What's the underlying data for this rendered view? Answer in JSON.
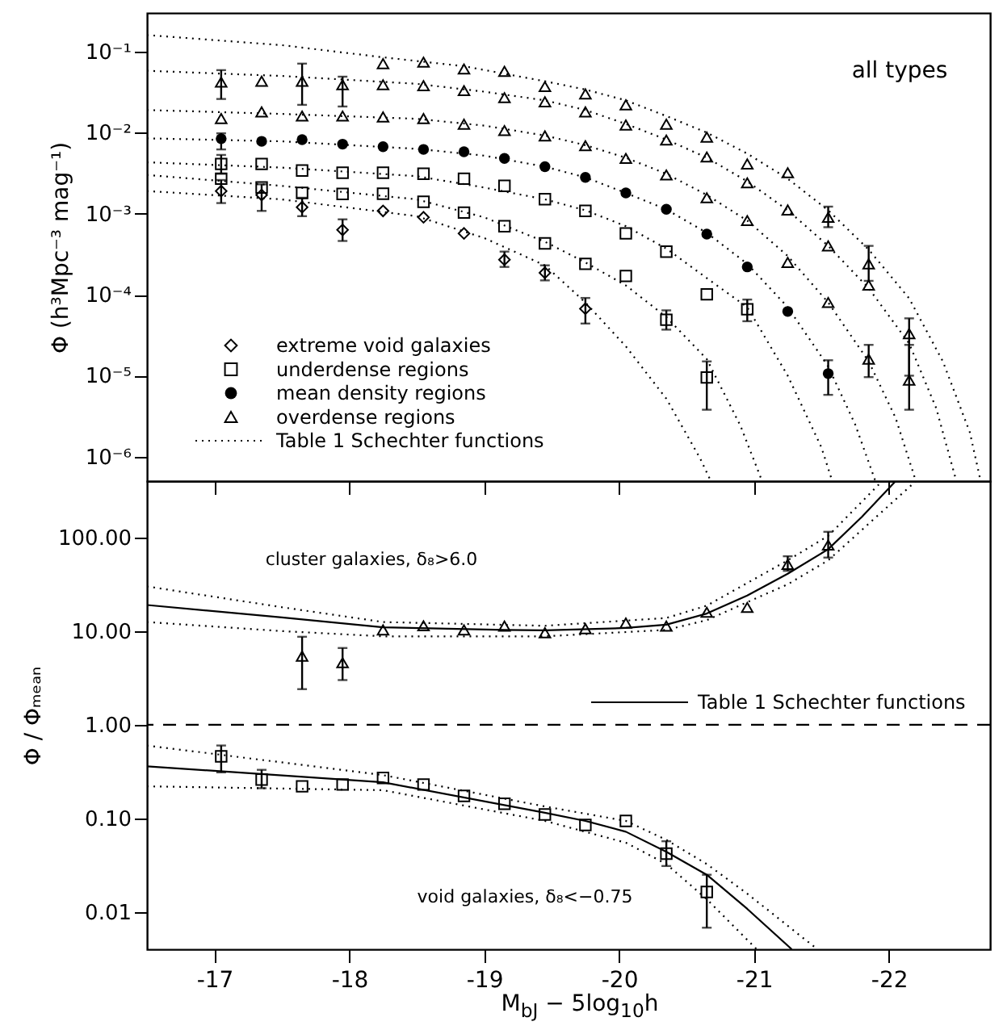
{
  "chart_data": [
    {
      "type": "scatter",
      "ylabel": "Φ (h³Mpc⁻³ mag⁻¹)",
      "xlim": [
        -16.5,
        -22.75
      ],
      "xticks": [
        -17,
        -18,
        -19,
        -20,
        -21,
        -22
      ],
      "ylim": [
        5e-07,
        0.3
      ],
      "log": "y",
      "tick_labels": "y",
      "legend": "bottom left",
      "annotations": [
        "all types"
      ],
      "yticks": [
        {
          "value": 1e-06,
          "label": "10⁻⁶"
        },
        {
          "value": 1e-05,
          "label": "10⁻⁵"
        },
        {
          "value": 0.0001,
          "label": "10⁻⁴"
        },
        {
          "value": 0.001,
          "label": "10⁻³"
        },
        {
          "value": 0.01,
          "label": "10⁻²"
        },
        {
          "value": 0.1,
          "label": "10⁻¹"
        }
      ],
      "series": [
        {
          "name": "extreme void galaxies",
          "marker": "diamond",
          "color": "#000000",
          "x": [
            -17.05,
            -17.35,
            -17.65,
            -17.95,
            -18.25,
            -18.55,
            -18.85,
            -19.15,
            -19.45,
            -19.75
          ],
          "values": [
            0.0019,
            0.0017,
            0.0012,
            0.00063,
            0.00108,
            0.0009,
            0.00057,
            0.00027,
            0.000186,
            6.7e-05
          ],
          "errors": [
            [
              0.00135,
              0.0026
            ],
            [
              0.00108,
              0.0023
            ],
            [
              0.00093,
              0.00157
            ],
            [
              0.00046,
              0.00085
            ],
            null,
            null,
            null,
            [
              0.00022,
              0.00034
            ],
            [
              0.00015,
              0.00023
            ],
            [
              4.4e-05,
              9.1e-05
            ]
          ]
        },
        {
          "name": "underdense regions",
          "marker": "square",
          "color": "#000000",
          "x": [
            -17.05,
            -17.35,
            -17.65,
            -17.95,
            -18.25,
            -18.55,
            -18.85,
            -19.15,
            -19.45,
            -19.75,
            -20.05,
            -20.35,
            -20.65,
            -20.95
          ],
          "values": [
            0.0041,
            0.0041,
            0.0034,
            0.0032,
            0.0032,
            0.0031,
            0.0027,
            0.0022,
            0.00151,
            0.00108,
            0.00057,
            0.00034,
            0.000101,
            6.6e-05
          ],
          "errors": [
            [
              0.0031,
              0.0053
            ],
            null,
            null,
            null,
            null,
            null,
            null,
            null,
            null,
            null,
            null,
            null,
            null,
            [
              4.7e-05,
              8.7e-05
            ]
          ]
        },
        {
          "marker": "square",
          "color": "#000000",
          "x": [
            -17.05,
            -17.35,
            -17.65,
            -17.95,
            -18.25,
            -18.55,
            -18.85,
            -19.15,
            -19.45,
            -19.75,
            -20.05,
            -20.35,
            -20.65
          ],
          "values": [
            0.0027,
            0.0021,
            0.0018,
            0.00175,
            0.00176,
            0.0014,
            0.00103,
            0.0007,
            0.00043,
            0.00024,
            0.00017,
            4.9e-05,
            9.5e-06
          ],
          "errors": [
            null,
            null,
            null,
            null,
            null,
            null,
            null,
            null,
            null,
            null,
            null,
            [
              3.7e-05,
              6.4e-05
            ],
            [
              3.8e-06,
              1.5e-05
            ]
          ]
        },
        {
          "name": "mean density regions",
          "marker": "circle",
          "color": "#000000",
          "x": [
            -17.05,
            -17.35,
            -17.65,
            -17.95,
            -18.25,
            -18.55,
            -18.85,
            -19.15,
            -19.45,
            -19.75,
            -20.05,
            -20.35,
            -20.65,
            -20.95,
            -21.25,
            -21.55
          ],
          "values": [
            0.0084,
            0.0078,
            0.0082,
            0.0072,
            0.0067,
            0.0062,
            0.0058,
            0.0048,
            0.0038,
            0.0028,
            0.0018,
            0.00113,
            0.00056,
            0.00022,
            6.2e-05,
            1.06e-05
          ],
          "errors": [
            [
              0.0062,
              0.0098
            ],
            null,
            null,
            null,
            null,
            null,
            null,
            null,
            null,
            null,
            null,
            null,
            null,
            null,
            null,
            [
              5.8e-06,
              1.55e-05
            ]
          ]
        },
        {
          "name": "overdense regions",
          "marker": "triangle",
          "color": "#000000",
          "x": [
            -18.25,
            -18.55,
            -18.85,
            -19.15,
            -19.45,
            -19.75,
            -20.05,
            -20.35,
            -20.65,
            -20.95,
            -21.25,
            -21.55,
            -21.85,
            -22.15
          ],
          "values": [
            0.071,
            0.074,
            0.061,
            0.057,
            0.037,
            0.03,
            0.022,
            0.0127,
            0.0088,
            0.0041,
            0.0032,
            0.0009,
            0.00024,
            3.3e-05
          ],
          "errors": [
            null,
            null,
            null,
            null,
            null,
            null,
            null,
            null,
            null,
            null,
            null,
            [
              0.00068,
              0.00122
            ],
            [
              0.000148,
              0.0004
            ],
            [
              1e-05,
              5.1e-05
            ]
          ]
        },
        {
          "marker": "triangle",
          "color": "#000000",
          "x": [
            -17.05,
            -17.35,
            -17.65,
            -17.95,
            -18.25,
            -18.55,
            -18.85,
            -19.15,
            -19.45,
            -19.75,
            -20.05,
            -20.35,
            -20.65,
            -20.95,
            -21.25,
            -21.55,
            -21.85,
            -22.15
          ],
          "values": [
            0.042,
            0.043,
            0.043,
            0.039,
            0.039,
            0.038,
            0.033,
            0.027,
            0.024,
            0.018,
            0.0124,
            0.0081,
            0.005,
            0.0024,
            0.00111,
            0.0004,
            0.000131,
            8.8e-06
          ],
          "errors": [
            [
              0.026,
              0.059
            ],
            null,
            [
              0.022,
              0.071
            ],
            [
              0.021,
              0.049
            ],
            null,
            null,
            null,
            null,
            null,
            null,
            null,
            null,
            null,
            null,
            null,
            null,
            null,
            [
              3.8e-06,
              2.4e-05
            ]
          ]
        },
        {
          "marker": "triangle",
          "color": "#000000",
          "x": [
            -17.05,
            -17.35,
            -17.65,
            -17.95,
            -18.25,
            -18.55,
            -18.85,
            -19.15,
            -19.45,
            -19.75,
            -20.05,
            -20.35,
            -20.65,
            -20.95,
            -21.25,
            -21.55,
            -21.85
          ],
          "values": [
            0.0149,
            0.018,
            0.016,
            0.016,
            0.0156,
            0.0149,
            0.0127,
            0.0106,
            0.0091,
            0.0069,
            0.0048,
            0.003,
            0.00157,
            0.00082,
            0.00025,
            8e-05,
            1.6e-05
          ],
          "errors": [
            null,
            null,
            null,
            null,
            null,
            null,
            null,
            null,
            null,
            null,
            null,
            null,
            null,
            null,
            null,
            null,
            [
              9.6e-06,
              2.4e-05
            ]
          ]
        },
        {
          "type": "line",
          "name": "Table 1 Schechter functions",
          "line_style": "dotted",
          "color": "#000000",
          "x": [
            -16.5,
            -17.5,
            -18.25,
            -18.85,
            -19.45,
            -19.75,
            -20.05,
            -20.35,
            -20.65,
            -20.95,
            -21.25,
            -21.55,
            -21.85,
            -22.15,
            -22.4,
            -22.6,
            -22.68
          ],
          "values": [
            0.16,
            0.12,
            0.085,
            0.066,
            0.043,
            0.034,
            0.025,
            0.016,
            0.01,
            0.0055,
            0.0027,
            0.0011,
            0.00036,
            9e-05,
            1.5e-05,
            2e-06,
            5e-07
          ]
        },
        {
          "type": "line",
          "line_style": "dotted",
          "color": "#000000",
          "x": [
            -16.5,
            -17.5,
            -18.5,
            -19,
            -19.45,
            -19.75,
            -20.05,
            -20.35,
            -20.65,
            -20.95,
            -21.25,
            -21.55,
            -21.85,
            -22.15,
            -22.35,
            -22.5
          ],
          "values": [
            0.058,
            0.05,
            0.04,
            0.032,
            0.025,
            0.019,
            0.0128,
            0.0082,
            0.0049,
            0.0025,
            0.0011,
            0.0004,
            0.00012,
            2.5e-05,
            4e-06,
            5e-07
          ]
        },
        {
          "type": "line",
          "line_style": "dotted",
          "color": "#000000",
          "x": [
            -16.5,
            -17.5,
            -18.5,
            -19,
            -19.45,
            -19.75,
            -20.05,
            -20.35,
            -20.65,
            -20.95,
            -21.25,
            -21.55,
            -21.85,
            -22.05,
            -22.2
          ],
          "values": [
            0.019,
            0.017,
            0.0148,
            0.0122,
            0.0092,
            0.007,
            0.0049,
            0.0031,
            0.0017,
            0.00082,
            0.0003,
            8e-05,
            1.5e-05,
            3e-06,
            5e-07
          ]
        },
        {
          "type": "line",
          "line_style": "dotted",
          "color": "#000000",
          "x": [
            -16.5,
            -17.5,
            -18.5,
            -19,
            -19.45,
            -19.75,
            -20.05,
            -20.35,
            -20.65,
            -20.95,
            -21.25,
            -21.55,
            -21.75,
            -21.9
          ],
          "values": [
            0.0085,
            0.0078,
            0.0063,
            0.0052,
            0.0038,
            0.0028,
            0.0018,
            0.00113,
            0.00058,
            0.00024,
            7e-05,
            1.3e-05,
            2.5e-06,
            5e-07
          ]
        },
        {
          "type": "line",
          "line_style": "dotted",
          "color": "#000000",
          "x": [
            -16.5,
            -17.5,
            -18.5,
            -19,
            -19.45,
            -19.75,
            -20.05,
            -20.35,
            -20.65,
            -20.95,
            -21.25,
            -21.5,
            -21.58
          ],
          "values": [
            0.0043,
            0.0037,
            0.0029,
            0.0021,
            0.0015,
            0.0011,
            0.0007,
            0.00037,
            0.00016,
            7e-05,
            1e-05,
            1.3e-06,
            5e-07
          ]
        },
        {
          "type": "line",
          "line_style": "dotted",
          "color": "#000000",
          "x": [
            -16.5,
            -17.5,
            -18.5,
            -19,
            -19.45,
            -19.75,
            -20.05,
            -20.35,
            -20.65,
            -20.9,
            -21.06
          ],
          "values": [
            0.003,
            0.0022,
            0.0015,
            0.0009,
            0.00045,
            0.00025,
            0.00013,
            5.3e-05,
            1.6e-05,
            2.4e-06,
            5e-07
          ]
        },
        {
          "type": "line",
          "line_style": "dotted",
          "color": "#000000",
          "x": [
            -16.5,
            -17.5,
            -18.5,
            -19,
            -19.45,
            -19.75,
            -20.05,
            -20.35,
            -20.6,
            -20.68
          ],
          "values": [
            0.0019,
            0.0015,
            0.00093,
            0.0005,
            0.00023,
            8e-05,
            2.3e-05,
            5.2e-06,
            9.6e-07,
            5e-07
          ]
        }
      ]
    },
    {
      "type": "scatter",
      "xlabel": "M$_{bJ}$ − 5log$_{10}$h",
      "ylabel": "Φ / Φₘₑₐₙ",
      "xlim": [
        -16.5,
        -22.75
      ],
      "xticks": [
        -17,
        -18,
        -19,
        -20,
        -21,
        -22
      ],
      "ylim": [
        0.004,
        400
      ],
      "log": "y",
      "legend": "right",
      "annotations": [
        "cluster galaxies, δ₈>6.0",
        "void galaxies, δ₈<−0.75"
      ],
      "yticks": [
        {
          "value": 0.01,
          "label": "0.01"
        },
        {
          "value": 0.1,
          "label": "0.10"
        },
        {
          "value": 1,
          "label": "1.00"
        },
        {
          "value": 10,
          "label": "10.00"
        },
        {
          "value": 100,
          "label": "100.00"
        }
      ],
      "ref_lines": [
        {
          "axis": "y",
          "value": 1,
          "line_style": "dashed",
          "color": "#000000"
        }
      ],
      "series": [
        {
          "marker": "triangle",
          "color": "#000000",
          "x": [
            -17.65,
            -17.95,
            -18.25,
            -18.55,
            -18.85,
            -19.15,
            -19.45,
            -19.75,
            -20.05,
            -20.35,
            -20.65,
            -20.95,
            -21.25,
            -21.55
          ],
          "values": [
            5.4,
            4.6,
            10.3,
            11.4,
            10.3,
            11.3,
            9.6,
            10.6,
            12.2,
            11.3,
            15.9,
            17.9,
            51.6,
            83
          ],
          "errors": [
            [
              2.4,
              8.7
            ],
            [
              3.0,
              6.6
            ],
            null,
            null,
            null,
            null,
            null,
            null,
            null,
            null,
            null,
            null,
            [
              44,
              63
            ],
            [
              61,
              115
            ]
          ]
        },
        {
          "marker": "square",
          "color": "#000000",
          "x": [
            -17.05,
            -17.35,
            -17.65,
            -17.95,
            -18.25,
            -18.55,
            -18.85,
            -19.15,
            -19.45,
            -19.75,
            -20.05,
            -20.35,
            -20.65
          ],
          "values": [
            0.46,
            0.26,
            0.22,
            0.23,
            0.27,
            0.23,
            0.174,
            0.143,
            0.11,
            0.085,
            0.094,
            0.042,
            0.0164
          ],
          "errors": [
            [
              0.31,
              0.6
            ],
            [
              0.21,
              0.33
            ],
            null,
            null,
            null,
            null,
            null,
            null,
            null,
            null,
            null,
            [
              0.031,
              0.057
            ],
            [
              0.0068,
              0.025
            ]
          ]
        },
        {
          "type": "line",
          "name": "Table 1 Schechter functions",
          "line_style": "solid",
          "color": "#000000",
          "x": [
            -16.5,
            -17.5,
            -18.25,
            -19.15,
            -19.45,
            -20.05,
            -20.35,
            -20.65,
            -20.95,
            -21.25,
            -21.55,
            -21.8,
            -22.05
          ],
          "values": [
            19,
            14,
            11,
            10.3,
            10.2,
            10.8,
            11.7,
            15.4,
            24,
            41,
            75,
            166,
            400
          ]
        },
        {
          "type": "line",
          "line_style": "dotted",
          "color": "#000000",
          "x": [
            -16.5,
            -17.5,
            -18.25,
            -19.45,
            -20.35,
            -20.65,
            -21.25,
            -21.55,
            -21.95
          ],
          "values": [
            30,
            18,
            12.5,
            11.4,
            13.8,
            18.7,
            57,
            104,
            400
          ]
        },
        {
          "type": "line",
          "line_style": "dotted",
          "color": "#000000",
          "x": [
            -16.5,
            -17.5,
            -18.25,
            -19.45,
            -20.35,
            -20.65,
            -21.25,
            -21.55,
            -22.2
          ],
          "values": [
            12.5,
            10,
            8.8,
            8.8,
            10.3,
            13.1,
            31.6,
            57,
            400
          ]
        },
        {
          "type": "line",
          "line_style": "solid",
          "color": "#000000",
          "x": [
            -16.5,
            -18.25,
            -19.45,
            -19.75,
            -20.05,
            -20.35,
            -20.65,
            -20.95,
            -21.28
          ],
          "values": [
            0.36,
            0.243,
            0.115,
            0.094,
            0.072,
            0.044,
            0.025,
            0.0108,
            0.004
          ]
        },
        {
          "type": "line",
          "line_style": "dotted",
          "color": "#000000",
          "x": [
            -16.5,
            -18.25,
            -19.45,
            -20.05,
            -20.35,
            -20.65,
            -20.95,
            -21.47
          ],
          "values": [
            0.6,
            0.29,
            0.134,
            0.094,
            0.059,
            0.0325,
            0.0157,
            0.004
          ]
        },
        {
          "type": "line",
          "line_style": "dotted",
          "color": "#000000",
          "x": [
            -16.5,
            -18.25,
            -19.45,
            -20.05,
            -20.35,
            -20.65,
            -21.02
          ],
          "values": [
            0.22,
            0.2,
            0.094,
            0.055,
            0.0325,
            0.0137,
            0.004
          ]
        }
      ]
    }
  ]
}
